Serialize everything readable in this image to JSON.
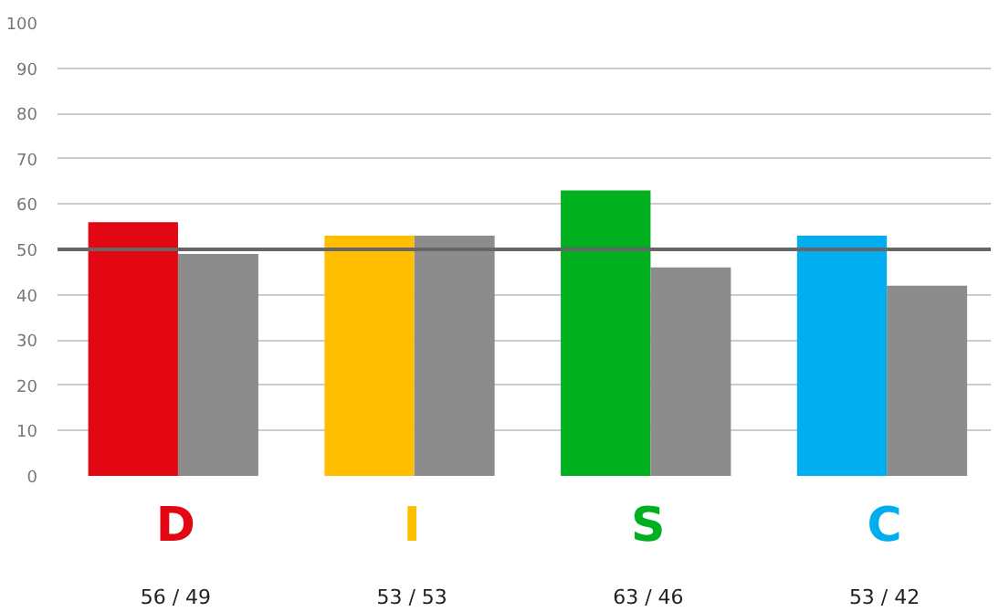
{
  "chart_data": {
    "type": "bar",
    "categories": [
      "D",
      "I",
      "S",
      "C"
    ],
    "series": [
      {
        "colors": [
          "#e30613",
          "#ffbf00",
          "#00b01f",
          "#00aeef"
        ],
        "values": [
          56,
          53,
          63,
          53
        ]
      },
      {
        "color": "#8c8c8c",
        "values": [
          49,
          53,
          46,
          42
        ]
      }
    ],
    "ylim": [
      0,
      100
    ],
    "yticks": [
      0,
      10,
      20,
      30,
      40,
      50,
      60,
      70,
      80,
      90,
      100
    ],
    "grid": "y",
    "ref_lines": [
      {
        "axis": "y",
        "value": 50,
        "color": "#666666"
      }
    ],
    "annotations": [
      "56 / 49",
      "53 / 53",
      "63 / 46",
      "53 / 42"
    ]
  }
}
